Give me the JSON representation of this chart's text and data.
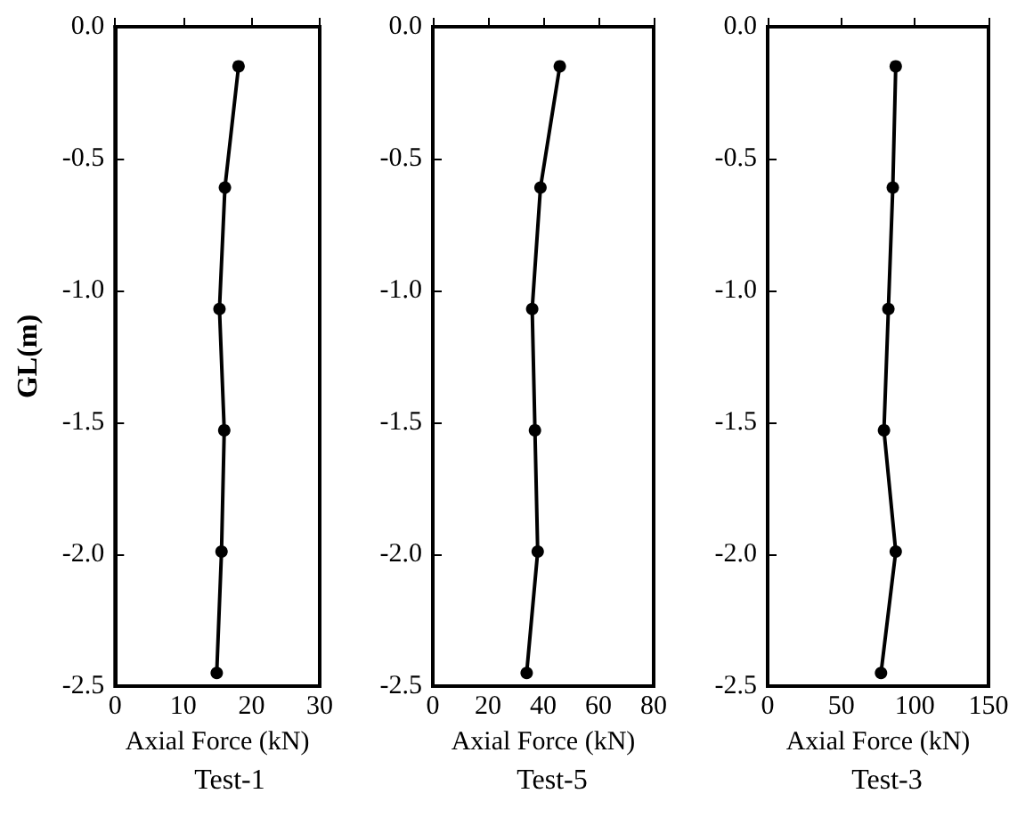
{
  "chart_data": [
    {
      "type": "line",
      "title": "Test-1",
      "xlabel": "Axial Force (kN)",
      "ylabel": "GL(m)",
      "marker": "circle",
      "line_style": "solid",
      "series": [
        {
          "color": "#000000",
          "x": [
            18.1,
            16.1,
            15.3,
            16.0,
            15.6,
            14.9
          ],
          "values": [
            -0.15,
            -0.61,
            -1.07,
            -1.53,
            -1.99,
            -2.45
          ]
        }
      ],
      "xlim": [
        0,
        30
      ],
      "xticks": [
        0,
        10,
        20,
        30
      ],
      "ylim": [
        -2.5,
        0
      ],
      "yticks": [
        {
          "value": 0,
          "label": "0.0"
        },
        {
          "value": -0.5,
          "label": "-0.5"
        },
        {
          "value": -1,
          "label": "-1.0"
        },
        {
          "value": -1.5,
          "label": "-1.5"
        },
        {
          "value": -2,
          "label": "-2.0"
        },
        {
          "value": -2.5,
          "label": "-2.5"
        }
      ]
    },
    {
      "type": "line",
      "title": "Test-5",
      "xlabel": "Axial Force (kN)",
      "marker": "circle",
      "line_style": "solid",
      "series": [
        {
          "color": "#000000",
          "x": [
            46,
            39,
            36,
            37,
            38,
            34
          ],
          "values": [
            -0.15,
            -0.61,
            -1.07,
            -1.53,
            -1.99,
            -2.45
          ]
        }
      ],
      "xlim": [
        0,
        80
      ],
      "xticks": [
        0,
        20,
        40,
        60,
        80
      ],
      "ylim": [
        -2.5,
        0
      ],
      "yticks": [
        {
          "value": 0,
          "label": "0.0"
        },
        {
          "value": -0.5,
          "label": "-0.5"
        },
        {
          "value": -1,
          "label": "-1.0"
        },
        {
          "value": -1.5,
          "label": "-1.5"
        },
        {
          "value": -2,
          "label": "-2.0"
        },
        {
          "value": -2.5,
          "label": "-2.5"
        }
      ]
    },
    {
      "type": "line",
      "title": "Test-3",
      "xlabel": "Axial Force (kN)",
      "marker": "circle",
      "line_style": "solid",
      "series": [
        {
          "color": "#000000",
          "x": [
            87,
            85,
            82,
            79,
            87,
            77
          ],
          "values": [
            -0.15,
            -0.61,
            -1.07,
            -1.53,
            -1.99,
            -2.45
          ]
        }
      ],
      "xlim": [
        0,
        150
      ],
      "xticks": [
        0,
        50,
        100,
        150
      ],
      "ylim": [
        -2.5,
        0
      ],
      "yticks": [
        {
          "value": 0,
          "label": "0.0"
        },
        {
          "value": -0.5,
          "label": "-0.5"
        },
        {
          "value": -1,
          "label": "-1.0"
        },
        {
          "value": -1.5,
          "label": "-1.5"
        },
        {
          "value": -2,
          "label": "-2.0"
        },
        {
          "value": -2.5,
          "label": "-2.5"
        }
      ]
    }
  ]
}
